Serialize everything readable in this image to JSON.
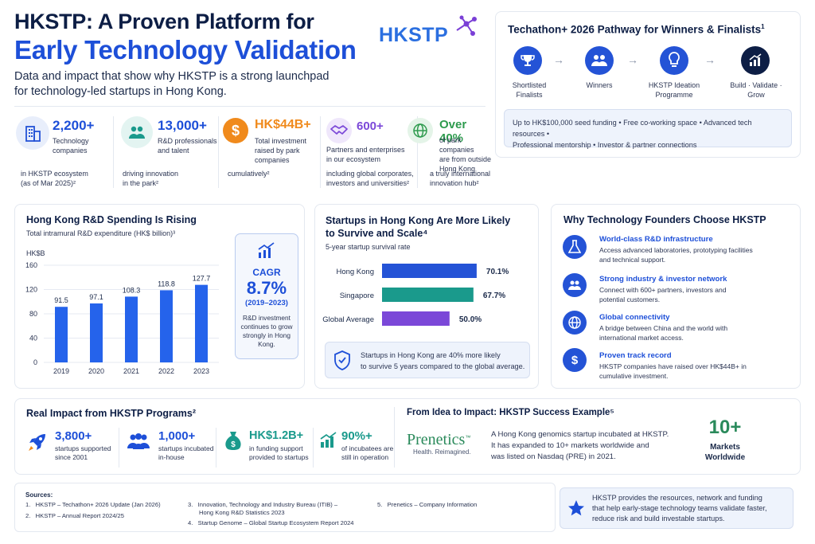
{
  "header": {
    "title_line1": "HKSTP: A Proven Platform for",
    "title_line2": "Early Technology Validation",
    "subtitle_line1": "Data and impact that show why HKSTP is a strong launchpad",
    "subtitle_line2": "for technology-led startups in Hong Kong.",
    "logo": "HKSTP"
  },
  "pathway": {
    "title": "Techathon+ 2026 Pathway for Winners & Finalists",
    "sup": "1",
    "steps": [
      {
        "label1": "Shortlisted",
        "label2": "Finalists"
      },
      {
        "label1": "Winners",
        "label2": ""
      },
      {
        "label1": "HKSTP Ideation",
        "label2": "Programme"
      },
      {
        "label1": "Build · Validate ·",
        "label2": "Grow"
      }
    ],
    "benefits_line1": "Up to HK$100,000 seed funding • Free co-working space • Advanced tech resources •",
    "benefits_line2": "Professional mentorship • Investor & partner connections"
  },
  "stats": [
    {
      "value": "2,200+",
      "l1": "Technology",
      "l2": "companies",
      "l3": "",
      "n1": "in HKSTP ecosystem",
      "n2": "(as of Mar 2025)²"
    },
    {
      "value": "13,000+",
      "l1": "R&D professionals",
      "l2": "and talent",
      "l3": "",
      "n1": "driving innovation",
      "n2": "in the park²"
    },
    {
      "value": "HK$44B+",
      "l1": "Total investment",
      "l2": "raised by park",
      "l3": "companies",
      "n1": "cumulatively²",
      "n2": ""
    },
    {
      "value": "600+",
      "l1": "Partners and enterprises",
      "l2": "in our ecosystem",
      "l3": "",
      "n1": "including global corporates,",
      "n2": "investors and universities²"
    },
    {
      "value": "Over 40%",
      "l1": "of park companies",
      "l2": "are from outside",
      "l3": "Hong Kong",
      "n1": "a truly international",
      "n2": "innovation hub²"
    }
  ],
  "rd": {
    "title": "Hong Kong R&D Spending Is Rising",
    "subtitle": "Total intramural R&D expenditure (HK$ billion)³",
    "unit": "HK$B",
    "cagr_label": "CAGR",
    "cagr_value": "8.7%",
    "cagr_period": "(2019–2023)",
    "cagr_n1": "R&D investment",
    "cagr_n2": "continues to grow",
    "cagr_n3": "strongly in Hong Kong."
  },
  "chart_data": [
    {
      "type": "bar",
      "categories": [
        "2019",
        "2020",
        "2021",
        "2022",
        "2023"
      ],
      "values": [
        91.5,
        97.1,
        108.3,
        118.8,
        127.7
      ],
      "labels": [
        "91.5",
        "97.1",
        "108.3",
        "118.8",
        "127.7"
      ],
      "ylabel": "HK$B",
      "ylim": [
        0,
        160
      ],
      "yticks": [
        "0",
        "40",
        "80",
        "120",
        "160"
      ],
      "color": "#2563eb"
    },
    {
      "type": "bar",
      "orientation": "horizontal",
      "categories": [
        "Hong Kong",
        "Singapore",
        "Global Average"
      ],
      "values": [
        70.1,
        67.7,
        50.0
      ],
      "labels": [
        "70.1%",
        "67.7%",
        "50.0%"
      ],
      "colors": [
        "#2453d6",
        "#1a9a8c",
        "#7b48d8"
      ],
      "xlim": [
        0,
        80
      ]
    }
  ],
  "survival": {
    "title1": "Startups in Hong Kong Are More Likely",
    "title2": "to Survive and Scale⁴",
    "subtitle": "5-year startup survival rate",
    "note1": "Startups in Hong Kong are 40% more likely",
    "note2": "to survive 5 years compared to the global average."
  },
  "why": {
    "title": "Why Technology Founders Choose HKSTP",
    "items": [
      {
        "head": "World-class R&D infrastructure",
        "d1": "Access advanced laboratories, prototyping facilities",
        "d2": "and technical support."
      },
      {
        "head": "Strong industry & investor network",
        "d1": "Connect with 600+ partners, investors and",
        "d2": "potential customers."
      },
      {
        "head": "Global connectivity",
        "d1": "A bridge between China and the world with",
        "d2": "international market access."
      },
      {
        "head": "Proven track record",
        "d1": "HKSTP companies have raised over HK$44B+ in",
        "d2": "cumulative investment."
      }
    ]
  },
  "impact": {
    "title": "Real Impact from HKSTP Programs²",
    "items": [
      {
        "value": "3,800+",
        "l1": "startups supported",
        "l2": "since 2001"
      },
      {
        "value": "1,000+",
        "l1": "startups incubated",
        "l2": "in-house"
      },
      {
        "value": "HK$1.2B+",
        "l1": "in funding support",
        "l2": "provided to startups"
      },
      {
        "value": "90%+",
        "l1": "of incubatees are",
        "l2": "still in operation"
      }
    ]
  },
  "example": {
    "title": "From Idea to Impact: HKSTP Success Example⁵",
    "brand": "Prenetics",
    "tm": "™",
    "tagline": "Health. Reimagined.",
    "d1": "A Hong Kong genomics startup incubated at HKSTP.",
    "d2": "It has expanded to 10+ markets worldwide and",
    "d3": "was listed on Nasdaq (PRE) in 2021.",
    "big": "10+",
    "big_l1": "Markets",
    "big_l2": "Worldwide"
  },
  "sources": {
    "title": "Sources:",
    "s1": "1.   HKSTP – Techathon+ 2026 Update (Jan 2026)",
    "s2": "2.   HKSTP – Annual Report 2024/25",
    "s3a": "3.   Innovation, Technology and Industry Bureau (ITIB) –",
    "s3b": "Hong Kong R&D Statistics 2023",
    "s4": "4.   Startup Genome – Global Startup Ecosystem Report 2024",
    "s5": "5.   Prenetics – Company Information"
  },
  "closing": {
    "l1": "HKSTP provides the resources, network and funding",
    "l2": "that help early-stage technology teams validate faster,",
    "l3": "reduce risk and build investable startups."
  },
  "colors": {
    "navy": "#0d1e45",
    "blue": "#1d4fd8",
    "teal": "#1a9a8c",
    "purple": "#7b48d8",
    "orange": "#f08a1c",
    "green": "#2e9b4e"
  }
}
